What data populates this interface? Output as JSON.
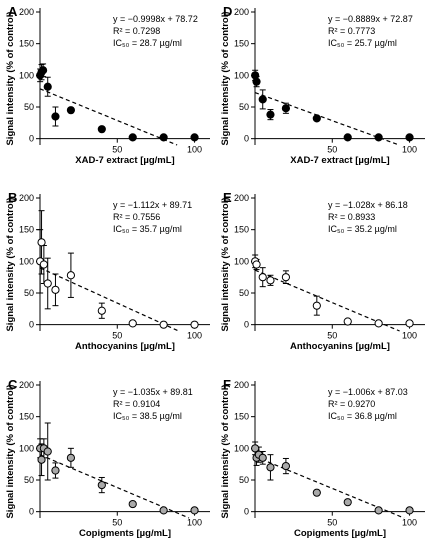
{
  "chart_data": [
    {
      "panel": "A",
      "type": "scatter",
      "xlabel": "XAD-7 extract [µg/mL]",
      "ylabel": "Signal intensity (% of control)",
      "xlim": [
        0,
        110
      ],
      "ylim": [
        -10,
        200
      ],
      "xticks": [
        50,
        100
      ],
      "yticks": [
        0,
        50,
        100,
        150,
        200
      ],
      "marker_fill": "#000000",
      "points": [
        {
          "x": 0.1,
          "y": 100,
          "err": 10
        },
        {
          "x": 1,
          "y": 105,
          "err": 12
        },
        {
          "x": 2,
          "y": 108,
          "err": 10
        },
        {
          "x": 5,
          "y": 82,
          "err": 15
        },
        {
          "x": 10,
          "y": 35,
          "err": 15
        },
        {
          "x": 20,
          "y": 45,
          "err": 0
        },
        {
          "x": 40,
          "y": 15,
          "err": 0
        },
        {
          "x": 60,
          "y": 2,
          "err": 0
        },
        {
          "x": 80,
          "y": 2,
          "err": 0
        },
        {
          "x": 100,
          "y": 2,
          "err": 0
        }
      ],
      "fit": {
        "slope": -0.9998,
        "intercept": 78.72
      },
      "eq_y_text": "y = −0.9998x + 78.72",
      "eq_r2_text": "R² = 0.7298",
      "eq_ic50_text": "IC₅₀ = 28.7 µg/ml"
    },
    {
      "panel": "D",
      "type": "scatter",
      "xlabel": "XAD-7 extract [µg/mL]",
      "ylabel": "Signal intensity (% of control)",
      "xlim": [
        0,
        110
      ],
      "ylim": [
        -10,
        200
      ],
      "xticks": [
        50,
        100
      ],
      "yticks": [
        0,
        50,
        100,
        150,
        200
      ],
      "marker_fill": "#000000",
      "points": [
        {
          "x": 0.1,
          "y": 100,
          "err": 8
        },
        {
          "x": 1,
          "y": 90,
          "err": 8
        },
        {
          "x": 5,
          "y": 62,
          "err": 15
        },
        {
          "x": 10,
          "y": 38,
          "err": 8
        },
        {
          "x": 20,
          "y": 48,
          "err": 8
        },
        {
          "x": 40,
          "y": 32,
          "err": 0
        },
        {
          "x": 60,
          "y": 2,
          "err": 0
        },
        {
          "x": 80,
          "y": 2,
          "err": 0
        },
        {
          "x": 100,
          "y": 2,
          "err": 0
        }
      ],
      "fit": {
        "slope": -0.8889,
        "intercept": 72.87
      },
      "eq_y_text": "y = −0.8889x + 72.87",
      "eq_r2_text": "R² = 0.7773",
      "eq_ic50_text": "IC₅₀ = 25.7 µg/ml"
    },
    {
      "panel": "B",
      "type": "scatter",
      "xlabel": "Anthocyanins [µg/mL]",
      "ylabel": "Signal intensity (% of control)",
      "xlim": [
        0,
        110
      ],
      "ylim": [
        -10,
        200
      ],
      "xticks": [
        50,
        100
      ],
      "yticks": [
        0,
        50,
        100,
        150,
        200
      ],
      "marker_fill": "#ffffff",
      "points": [
        {
          "x": 0.1,
          "y": 100,
          "err": 50
        },
        {
          "x": 1,
          "y": 130,
          "err": 50
        },
        {
          "x": 2.5,
          "y": 95,
          "err": 30
        },
        {
          "x": 5,
          "y": 65,
          "err": 40
        },
        {
          "x": 10,
          "y": 55,
          "err": 25
        },
        {
          "x": 20,
          "y": 78,
          "err": 35
        },
        {
          "x": 40,
          "y": 22,
          "err": 12
        },
        {
          "x": 60,
          "y": 2,
          "err": 0
        },
        {
          "x": 80,
          "y": 0,
          "err": 0
        },
        {
          "x": 100,
          "y": 0,
          "err": 0
        }
      ],
      "fit": {
        "slope": -1.112,
        "intercept": 89.71
      },
      "eq_y_text": "y = −1.112x + 89.71",
      "eq_r2_text": "R² = 0.7556",
      "eq_ic50_text": "IC₅₀ = 35.7 µg/ml"
    },
    {
      "panel": "E",
      "type": "scatter",
      "xlabel": "Anthocyanins [µg/mL]",
      "ylabel": "Signal intensity (% of control)",
      "xlim": [
        0,
        110
      ],
      "ylim": [
        -10,
        200
      ],
      "xticks": [
        50,
        100
      ],
      "yticks": [
        0,
        50,
        100,
        150,
        200
      ],
      "marker_fill": "#ffffff",
      "points": [
        {
          "x": 0.1,
          "y": 100,
          "err": 10
        },
        {
          "x": 1,
          "y": 95,
          "err": 8
        },
        {
          "x": 5,
          "y": 75,
          "err": 15
        },
        {
          "x": 10,
          "y": 70,
          "err": 8
        },
        {
          "x": 20,
          "y": 75,
          "err": 10
        },
        {
          "x": 40,
          "y": 30,
          "err": 15
        },
        {
          "x": 60,
          "y": 5,
          "err": 0
        },
        {
          "x": 80,
          "y": 2,
          "err": 0
        },
        {
          "x": 100,
          "y": 2,
          "err": 0
        }
      ],
      "fit": {
        "slope": -1.028,
        "intercept": 86.18
      },
      "eq_y_text": "y = −1.028x + 86.18",
      "eq_r2_text": "R² = 0.8933",
      "eq_ic50_text": "IC₅₀ = 35.2 µg/ml"
    },
    {
      "panel": "C",
      "type": "scatter",
      "xlabel": "Copigments [µg/mL]",
      "ylabel": "Signal intensity (% of control)",
      "xlim": [
        0,
        110
      ],
      "ylim": [
        -10,
        200
      ],
      "xticks": [
        50,
        100
      ],
      "yticks": [
        0,
        50,
        100,
        150,
        200
      ],
      "marker_fill": "#a9a9a9",
      "points": [
        {
          "x": 0.1,
          "y": 100,
          "err": 15
        },
        {
          "x": 1,
          "y": 82,
          "err": 25
        },
        {
          "x": 2.5,
          "y": 100,
          "err": 15
        },
        {
          "x": 5,
          "y": 95,
          "err": 45
        },
        {
          "x": 10,
          "y": 65,
          "err": 12
        },
        {
          "x": 20,
          "y": 85,
          "err": 15
        },
        {
          "x": 40,
          "y": 42,
          "err": 12
        },
        {
          "x": 60,
          "y": 12,
          "err": 0
        },
        {
          "x": 80,
          "y": 2,
          "err": 0
        },
        {
          "x": 100,
          "y": 2,
          "err": 0
        }
      ],
      "fit": {
        "slope": -1.035,
        "intercept": 89.81
      },
      "eq_y_text": "y = −1.035x + 89.81",
      "eq_r2_text": "R² = 0.9104",
      "eq_ic50_text": "IC₅₀ = 38.5 µg/ml"
    },
    {
      "panel": "F",
      "type": "scatter",
      "xlabel": "Copigments [µg/mL]",
      "ylabel": "Signal intensity (% of control)",
      "xlim": [
        0,
        110
      ],
      "ylim": [
        -10,
        200
      ],
      "xticks": [
        50,
        100
      ],
      "yticks": [
        0,
        50,
        100,
        150,
        200
      ],
      "marker_fill": "#a9a9a9",
      "points": [
        {
          "x": 0.1,
          "y": 100,
          "err": 10
        },
        {
          "x": 1,
          "y": 85,
          "err": 12
        },
        {
          "x": 2.5,
          "y": 90,
          "err": 12
        },
        {
          "x": 5,
          "y": 85,
          "err": 10
        },
        {
          "x": 10,
          "y": 70,
          "err": 20
        },
        {
          "x": 20,
          "y": 72,
          "err": 12
        },
        {
          "x": 40,
          "y": 30,
          "err": 0
        },
        {
          "x": 60,
          "y": 15,
          "err": 0
        },
        {
          "x": 80,
          "y": 2,
          "err": 0
        },
        {
          "x": 100,
          "y": 2,
          "err": 0
        }
      ],
      "fit": {
        "slope": -1.006,
        "intercept": 87.03
      },
      "eq_y_text": "y = −1.006x + 87.03",
      "eq_r2_text": "R² = 0.9270",
      "eq_ic50_text": "IC₅₀ = 36.8 µg/ml"
    }
  ]
}
